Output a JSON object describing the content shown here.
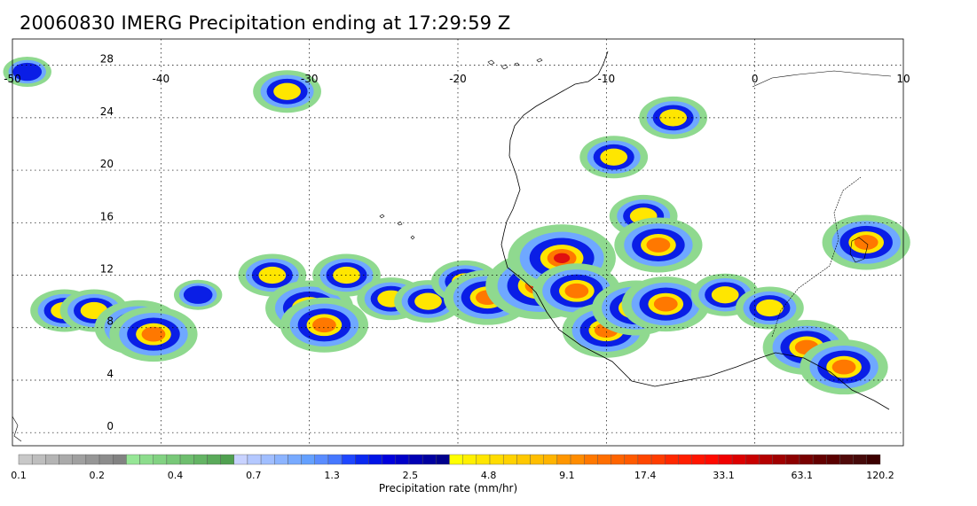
{
  "title": "20060830 IMERG Precipitation ending at 17:29:59 Z",
  "map": {
    "lon_range": [
      -50,
      10
    ],
    "lat_range": [
      -1,
      30
    ],
    "lon_ticks": [
      -50,
      -40,
      -30,
      -20,
      -10,
      0,
      10
    ],
    "lon_tick_labels": [
      "-50",
      "-40",
      "-30",
      "-20",
      "-10",
      "0",
      "10"
    ],
    "lat_ticks": [
      0,
      4,
      8,
      12,
      16,
      20,
      24,
      28
    ],
    "lat_tick_labels": [
      "0",
      "4",
      "8",
      "12",
      "16",
      "20",
      "24",
      "28"
    ],
    "grid": "dotted",
    "background": "#ffffff"
  },
  "colorbar": {
    "label": "Precipitation rate (mm/hr)",
    "colors": [
      "#c8c8c8",
      "#bebebe",
      "#b4b4b4",
      "#aaaaaa",
      "#a0a0a0",
      "#969696",
      "#8c8c8c",
      "#828282",
      "#96e696",
      "#8cdc8c",
      "#82d282",
      "#78c878",
      "#6ebe6e",
      "#64b464",
      "#5aaa5a",
      "#50a050",
      "#c8d2ff",
      "#b4c8ff",
      "#a0beff",
      "#8cb4ff",
      "#78aaff",
      "#64a0ff",
      "#5a8cff",
      "#4678ff",
      "#1e46ff",
      "#0a28f0",
      "#0014e6",
      "#0000dc",
      "#0000c8",
      "#0000b4",
      "#0000a0",
      "#00008c",
      "#ffff00",
      "#fff000",
      "#ffe600",
      "#ffdc00",
      "#ffd200",
      "#ffc800",
      "#ffbe00",
      "#ffb400",
      "#ff9600",
      "#ff8c00",
      "#ff7800",
      "#ff6e00",
      "#ff6400",
      "#ff5a00",
      "#ff4600",
      "#ff3c00",
      "#ff2800",
      "#ff1e00",
      "#ff1400",
      "#ff0a00",
      "#f00000",
      "#dc0000",
      "#c80000",
      "#b40000",
      "#a00000",
      "#8c0000",
      "#780000",
      "#640000",
      "#5a0000",
      "#500a0a",
      "#460a0a",
      "#3c0000"
    ],
    "tick_labels": [
      "0.1",
      "0.2",
      "0.4",
      "0.7",
      "1.3",
      "2.5",
      "4.8",
      "9.1",
      "17.4",
      "33.1",
      "63.1",
      "120.2"
    ]
  },
  "features": {
    "precipitation_cells": [
      {
        "lon": -46.5,
        "lat": 9.3,
        "intensity": 2
      },
      {
        "lon": -44.5,
        "lat": 9.3,
        "intensity": 2
      },
      {
        "lon": -41.5,
        "lat": 8.0,
        "intensity": 3
      },
      {
        "lon": -40.5,
        "lat": 7.5,
        "intensity": 3
      },
      {
        "lon": -37.5,
        "lat": 10.5,
        "intensity": 1
      },
      {
        "lon": -32.5,
        "lat": 12.0,
        "intensity": 2
      },
      {
        "lon": -30.0,
        "lat": 9.5,
        "intensity": 3
      },
      {
        "lon": -29.0,
        "lat": 8.2,
        "intensity": 3
      },
      {
        "lon": -27.5,
        "lat": 12.0,
        "intensity": 2
      },
      {
        "lon": -24.5,
        "lat": 10.2,
        "intensity": 2
      },
      {
        "lon": -22.0,
        "lat": 10.0,
        "intensity": 2
      },
      {
        "lon": -19.5,
        "lat": 11.5,
        "intensity": 2
      },
      {
        "lon": -18.0,
        "lat": 10.3,
        "intensity": 3
      },
      {
        "lon": -14.5,
        "lat": 11.2,
        "intensity": 4
      },
      {
        "lon": -13.0,
        "lat": 13.3,
        "intensity": 4
      },
      {
        "lon": -12.0,
        "lat": 10.8,
        "intensity": 3
      },
      {
        "lon": -10.0,
        "lat": 7.8,
        "intensity": 3
      },
      {
        "lon": -9.5,
        "lat": 21.0,
        "intensity": 2
      },
      {
        "lon": -7.5,
        "lat": 16.5,
        "intensity": 2
      },
      {
        "lon": -6.5,
        "lat": 14.3,
        "intensity": 3
      },
      {
        "lon": -8.0,
        "lat": 9.5,
        "intensity": 3
      },
      {
        "lon": -6.0,
        "lat": 9.8,
        "intensity": 3
      },
      {
        "lon": -5.5,
        "lat": 24.0,
        "intensity": 2
      },
      {
        "lon": -2.0,
        "lat": 10.5,
        "intensity": 2
      },
      {
        "lon": 1.0,
        "lat": 9.5,
        "intensity": 2
      },
      {
        "lon": 3.5,
        "lat": 6.5,
        "intensity": 3
      },
      {
        "lon": 6.0,
        "lat": 5.0,
        "intensity": 3
      },
      {
        "lon": 7.5,
        "lat": 14.5,
        "intensity": 3
      },
      {
        "lon": -31.5,
        "lat": 26.0,
        "intensity": 2
      },
      {
        "lon": -49.0,
        "lat": 27.5,
        "intensity": 1
      }
    ]
  }
}
